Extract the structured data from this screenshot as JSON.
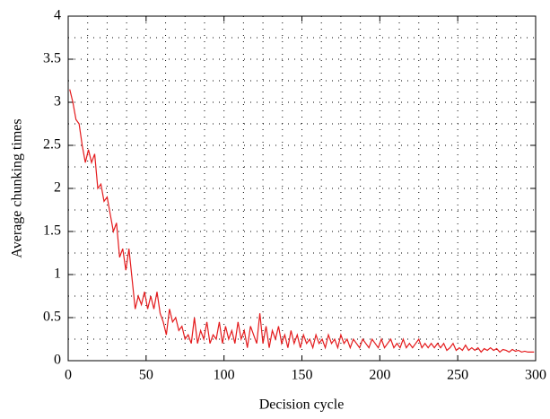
{
  "chart_data": {
    "type": "line",
    "xlabel": "Decision cycle",
    "ylabel": "Average chunking times",
    "color": "#e41a1c",
    "x": [
      1,
      3,
      5,
      7,
      9,
      11,
      13,
      15,
      17,
      19,
      21,
      23,
      25,
      27,
      29,
      31,
      33,
      35,
      37,
      39,
      41,
      43,
      45,
      47,
      49,
      51,
      53,
      55,
      57,
      59,
      61,
      63,
      65,
      67,
      69,
      71,
      73,
      75,
      77,
      79,
      81,
      83,
      85,
      87,
      89,
      91,
      93,
      95,
      97,
      99,
      101,
      103,
      105,
      107,
      109,
      111,
      113,
      115,
      117,
      119,
      121,
      123,
      125,
      127,
      129,
      131,
      133,
      135,
      137,
      139,
      141,
      143,
      145,
      147,
      149,
      151,
      153,
      155,
      157,
      159,
      161,
      163,
      165,
      167,
      169,
      171,
      173,
      175,
      177,
      179,
      181,
      183,
      185,
      187,
      189,
      191,
      193,
      195,
      197,
      199,
      201,
      203,
      205,
      207,
      209,
      211,
      213,
      215,
      217,
      219,
      221,
      223,
      225,
      227,
      229,
      231,
      233,
      235,
      237,
      239,
      241,
      243,
      245,
      247,
      249,
      251,
      253,
      255,
      257,
      259,
      261,
      263,
      265,
      267,
      269,
      271,
      273,
      275,
      277,
      279,
      281,
      283,
      285,
      287,
      289,
      291,
      293,
      295,
      297,
      299
    ],
    "values": [
      3.15,
      3.0,
      2.8,
      2.75,
      2.5,
      2.3,
      2.45,
      2.3,
      2.4,
      2.0,
      2.05,
      1.85,
      1.9,
      1.7,
      1.5,
      1.6,
      1.2,
      1.3,
      1.05,
      1.3,
      0.95,
      0.6,
      0.75,
      0.65,
      0.8,
      0.6,
      0.75,
      0.6,
      0.8,
      0.55,
      0.45,
      0.3,
      0.6,
      0.45,
      0.5,
      0.35,
      0.4,
      0.25,
      0.3,
      0.2,
      0.5,
      0.2,
      0.35,
      0.25,
      0.45,
      0.2,
      0.3,
      0.25,
      0.45,
      0.2,
      0.4,
      0.25,
      0.35,
      0.2,
      0.45,
      0.25,
      0.35,
      0.15,
      0.4,
      0.3,
      0.2,
      0.55,
      0.2,
      0.4,
      0.15,
      0.35,
      0.25,
      0.4,
      0.2,
      0.3,
      0.15,
      0.35,
      0.2,
      0.3,
      0.15,
      0.3,
      0.2,
      0.25,
      0.15,
      0.3,
      0.2,
      0.25,
      0.15,
      0.3,
      0.2,
      0.25,
      0.15,
      0.3,
      0.2,
      0.25,
      0.15,
      0.25,
      0.2,
      0.15,
      0.25,
      0.2,
      0.15,
      0.25,
      0.2,
      0.15,
      0.25,
      0.15,
      0.2,
      0.25,
      0.15,
      0.2,
      0.15,
      0.25,
      0.15,
      0.2,
      0.15,
      0.2,
      0.25,
      0.15,
      0.2,
      0.15,
      0.2,
      0.15,
      0.2,
      0.15,
      0.2,
      0.12,
      0.15,
      0.2,
      0.12,
      0.15,
      0.12,
      0.18,
      0.12,
      0.15,
      0.12,
      0.15,
      0.1,
      0.14,
      0.12,
      0.15,
      0.12,
      0.14,
      0.1,
      0.13,
      0.12,
      0.1,
      0.13,
      0.11,
      0.12,
      0.1,
      0.11,
      0.1,
      0.1,
      0.1
    ],
    "xlim": [
      0,
      300
    ],
    "ylim": [
      0,
      4
    ],
    "xticks": [
      0,
      50,
      100,
      150,
      200,
      250,
      300
    ],
    "yticks": [
      0,
      0.5,
      1,
      1.5,
      2,
      2.5,
      3,
      3.5,
      4
    ],
    "x_minor_grid": [
      12.5,
      25,
      37.5,
      62.5,
      75,
      87.5,
      112.5,
      125,
      137.5,
      162.5,
      175,
      187.5,
      212.5,
      225,
      237.5,
      262.5,
      275,
      287.5
    ],
    "y_minor_grid": [
      0.25,
      0.75,
      1.25,
      1.75,
      2.25,
      2.75,
      3.25,
      3.75
    ],
    "grid": true
  }
}
